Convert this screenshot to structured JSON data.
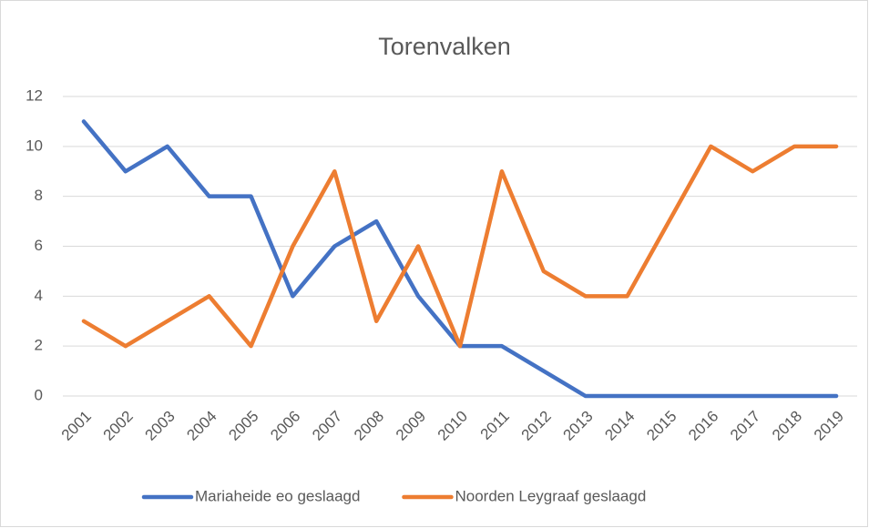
{
  "chart_data": {
    "type": "line",
    "title": "Torenvalken",
    "categories": [
      "2001",
      "2002",
      "2003",
      "2004",
      "2005",
      "2006",
      "2007",
      "2008",
      "2009",
      "2010",
      "2011",
      "2012",
      "2013",
      "2014",
      "2015",
      "2016",
      "2017",
      "2018",
      "2019"
    ],
    "series": [
      {
        "name": "Mariaheide eo geslaagd",
        "color": "#4472c4",
        "values": [
          11,
          9,
          10,
          8,
          8,
          4,
          6,
          7,
          4,
          2,
          2,
          1,
          0,
          0,
          0,
          0,
          0,
          0,
          0
        ]
      },
      {
        "name": "Noorden Leygraaf geslaagd",
        "color": "#ed7d31",
        "values": [
          3,
          2,
          3,
          4,
          2,
          6,
          9,
          3,
          6,
          2,
          9,
          5,
          4,
          4,
          7,
          10,
          9,
          10,
          10
        ]
      }
    ],
    "ylim": [
      0,
      12
    ],
    "yticks": [
      0,
      2,
      4,
      6,
      8,
      10,
      12
    ],
    "grid": true,
    "legend": "bottom"
  }
}
